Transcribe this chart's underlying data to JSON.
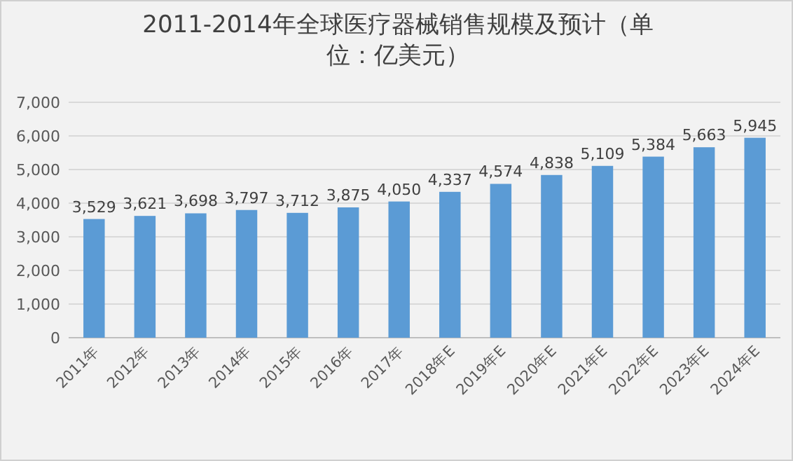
{
  "chart_data": {
    "type": "bar",
    "title": "2011-2014年全球医疗器械销售规模及预计（单位：亿美元）",
    "categories": [
      "2011年",
      "2012年",
      "2013年",
      "2014年",
      "2015年",
      "2016年",
      "2017年",
      "2018年E",
      "2019年E",
      "2020年E",
      "2021年E",
      "2022年E",
      "2023年E",
      "2024年E"
    ],
    "values": [
      3529,
      3621,
      3698,
      3797,
      3712,
      3875,
      4050,
      4337,
      4574,
      4838,
      5109,
      5384,
      5663,
      5945
    ],
    "value_labels": [
      "3,529",
      "3,621",
      "3,698",
      "3,797",
      "3,712",
      "3,875",
      "4,050",
      "4,337",
      "4,574",
      "4,838",
      "5,109",
      "5,384",
      "5,663",
      "5,945"
    ],
    "color": "#5b9bd5",
    "ylim": [
      0,
      7000
    ],
    "yticks": [
      0,
      {
        "value": 1000,
        "label": "1,000"
      },
      {
        "value": 2000,
        "label": "2,000"
      },
      {
        "value": 3000,
        "label": "3,000"
      },
      {
        "value": 4000,
        "label": "4,000"
      },
      {
        "value": 5000,
        "label": "5,000"
      },
      {
        "value": 6000,
        "label": "6,000"
      },
      {
        "value": 7000,
        "label": "7,000"
      }
    ],
    "grid": "y"
  }
}
